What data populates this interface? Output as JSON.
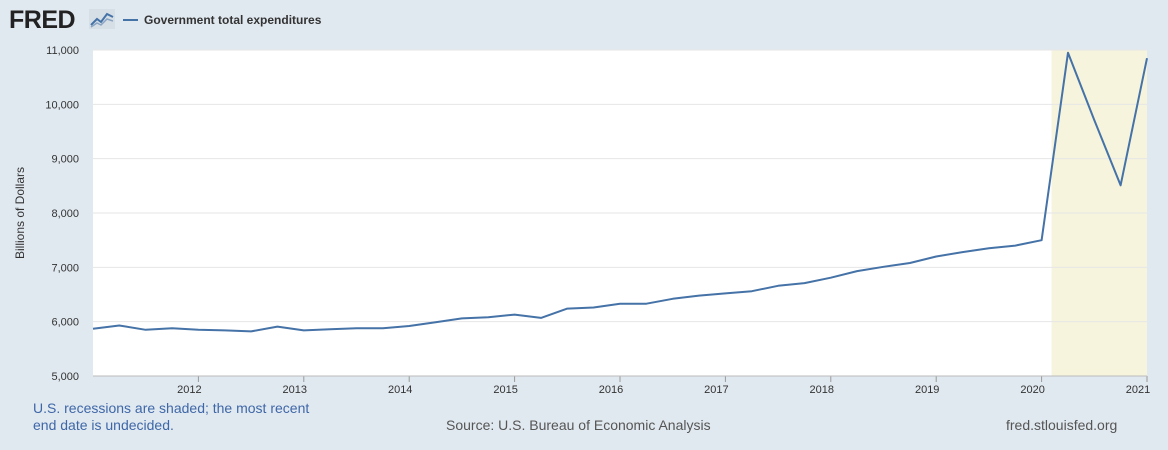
{
  "header": {
    "logo_text": "FRED",
    "legend_label": "Government total expenditures",
    "series_color": "#4572a7"
  },
  "chart_data": {
    "type": "line",
    "title": "",
    "xlabel": "",
    "ylabel": "Billions of Dollars",
    "ylim": [
      5000,
      11000
    ],
    "xlim": [
      2011.0,
      2021.0
    ],
    "y_ticks": [
      5000,
      6000,
      7000,
      8000,
      9000,
      10000,
      11000
    ],
    "y_tick_labels": [
      "5,000",
      "6,000",
      "7,000",
      "8,000",
      "9,000",
      "10,000",
      "11,000"
    ],
    "x_tick_labels": [
      "2012",
      "2013",
      "2014",
      "2015",
      "2016",
      "2017",
      "2018",
      "2019",
      "2020",
      "2021"
    ],
    "x_ticks": [
      2012,
      2013,
      2014,
      2015,
      2016,
      2017,
      2018,
      2019,
      2020,
      2021
    ],
    "recession_shading": [
      {
        "start": 2020.0,
        "end": 2021.0
      }
    ],
    "series": [
      {
        "name": "Government total expenditures",
        "color": "#4572a7",
        "x": [
          2011.0,
          2011.25,
          2011.5,
          2011.75,
          2012.0,
          2012.25,
          2012.5,
          2012.75,
          2013.0,
          2013.25,
          2013.5,
          2013.75,
          2014.0,
          2014.25,
          2014.5,
          2014.75,
          2015.0,
          2015.25,
          2015.5,
          2015.75,
          2016.0,
          2016.25,
          2016.5,
          2016.75,
          2017.0,
          2017.25,
          2017.5,
          2017.75,
          2018.0,
          2018.25,
          2018.5,
          2018.75,
          2019.0,
          2019.25,
          2019.5,
          2019.75,
          2020.0,
          2020.25,
          2020.5,
          2020.75,
          2021.0
        ],
        "values": [
          5870,
          5930,
          5850,
          5880,
          5850,
          5840,
          5820,
          5910,
          5840,
          5860,
          5880,
          5880,
          5920,
          5990,
          6060,
          6080,
          6130,
          6070,
          6240,
          6260,
          6330,
          6330,
          6420,
          6480,
          6520,
          6560,
          6660,
          6710,
          6810,
          6930,
          7010,
          7080,
          7200,
          7280,
          7350,
          7400,
          7500,
          10950,
          9710,
          8510,
          10850
        ]
      }
    ]
  },
  "footer": {
    "recession_note": "U.S. recessions are shaded; the most recent end date is undecided.",
    "source": "Source: U.S. Bureau of Economic Analysis",
    "url": "fred.stlouisfed.org"
  }
}
